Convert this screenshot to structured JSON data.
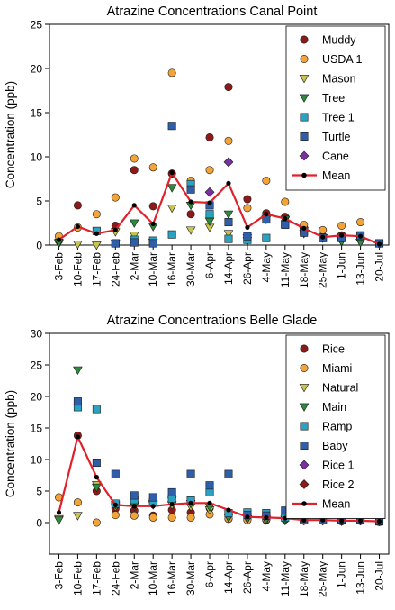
{
  "chart_data": [
    {
      "type": "scatter",
      "title": "Atrazine Concentrations Canal Point",
      "xlabel": "",
      "ylabel": "Concentration (ppb)",
      "ylim": [
        0,
        25
      ],
      "yticks": [
        0,
        5,
        10,
        15,
        20,
        25
      ],
      "grid": false,
      "legend_position": "top-right",
      "categories": [
        "3-Feb",
        "10-Feb",
        "17-Feb",
        "24-Feb",
        "2-Mar",
        "10-Mar",
        "16-Mar",
        "30-Mar",
        "6-Apr",
        "14-Apr",
        "26-Apr",
        "4-May",
        "11-May",
        "18-May",
        "25-May",
        "1-Jun",
        "13-Jun",
        "20-Jul"
      ],
      "series": [
        {
          "name": "Muddy",
          "marker": "circle",
          "color": "#8b1a1a",
          "values": [
            0.5,
            4.5,
            null,
            2.2,
            8.5,
            4.4,
            8.1,
            3.5,
            12.2,
            17.9,
            5.2,
            3.6,
            3.2,
            2.1,
            1.0,
            1.1,
            0.9,
            null
          ]
        },
        {
          "name": "USDA 1",
          "marker": "circle",
          "color": "#f2a33a",
          "values": [
            1.0,
            2.0,
            3.5,
            5.4,
            9.8,
            8.8,
            19.5,
            7.3,
            8.5,
            11.8,
            4.2,
            7.3,
            4.9,
            2.3,
            1.7,
            2.2,
            2.6,
            null
          ]
        },
        {
          "name": "Mason",
          "marker": "triangle-down",
          "color": "#c8c452",
          "values": [
            0.2,
            0.1,
            0.0,
            1.5,
            1.1,
            0.3,
            4.2,
            1.7,
            2.0,
            1.3,
            0.5,
            3.0,
            2.8,
            1.6,
            0.8,
            0.4,
            0.3,
            null
          ]
        },
        {
          "name": "Tree",
          "marker": "triangle-down",
          "color": "#2e8a3c",
          "values": [
            0.3,
            null,
            null,
            0.2,
            2.5,
            2.1,
            6.5,
            4.5,
            2.7,
            3.5,
            0.8,
            2.9,
            2.9,
            1.3,
            0.8,
            0.4,
            0.3,
            0.1
          ]
        },
        {
          "name": "Tree 1",
          "marker": "square",
          "color": "#2aa2c2",
          "values": [
            null,
            null,
            1.6,
            0.2,
            0.6,
            0.5,
            1.2,
            6.9,
            3.5,
            0.7,
            0.6,
            0.8,
            2.4,
            1.6,
            0.8,
            0.9,
            1.0,
            0.2
          ]
        },
        {
          "name": "Turtle",
          "marker": "square",
          "color": "#2f5fa8",
          "values": [
            null,
            null,
            null,
            0.2,
            0.3,
            0.2,
            13.5,
            6.3,
            4.5,
            2.6,
            1.0,
            2.9,
            2.3,
            1.4,
            0.8,
            0.8,
            1.1,
            0.2
          ]
        },
        {
          "name": "Cane",
          "marker": "diamond",
          "color": "#7b2fa2",
          "values": [
            null,
            null,
            null,
            null,
            null,
            null,
            null,
            null,
            6.0,
            9.4,
            null,
            null,
            null,
            null,
            null,
            null,
            null,
            null
          ]
        },
        {
          "name": "Mean",
          "marker": "line-dot",
          "color": "#e0202a",
          "values": [
            0.6,
            2.1,
            1.3,
            1.7,
            4.5,
            2.4,
            8.2,
            4.9,
            4.8,
            7.0,
            2.0,
            3.5,
            3.0,
            1.9,
            0.9,
            1.1,
            1.0,
            0.1
          ]
        }
      ]
    },
    {
      "type": "scatter",
      "title": "Atrazine Concentrations Belle Glade",
      "xlabel": "",
      "ylabel": "Concentration (ppb)",
      "ylim": [
        -5,
        30
      ],
      "yticks": [
        0,
        5,
        10,
        15,
        20,
        25,
        30
      ],
      "grid": false,
      "legend_position": "top-right",
      "categories": [
        "3-Feb",
        "10-Feb",
        "17-Feb",
        "24-Feb",
        "2-Mar",
        "10-Mar",
        "16-Mar",
        "30-Mar",
        "6-Apr",
        "14-Apr",
        "26-Apr",
        "4-May",
        "11-May",
        "18-May",
        "25-May",
        "1-Jun",
        "13-Jun",
        "20-Jul"
      ],
      "series": [
        {
          "name": "Rice",
          "marker": "circle",
          "color": "#8b1a1a",
          "values": [
            null,
            13.8,
            5.0,
            2.2,
            1.9,
            1.1,
            2.0,
            1.6,
            2.3,
            0.6,
            0.5,
            0.4,
            0.5,
            0.3,
            0.3,
            0.3,
            0.3,
            0.3
          ]
        },
        {
          "name": "Miami",
          "marker": "circle",
          "color": "#f2a33a",
          "values": [
            4.0,
            3.2,
            0.0,
            1.2,
            1.1,
            0.8,
            0.8,
            0.8,
            1.3,
            0.6,
            0.4,
            0.5,
            0.6,
            0.4,
            2.1,
            0.2,
            0.3,
            0.1
          ]
        },
        {
          "name": "Natural",
          "marker": "triangle-down",
          "color": "#c8c452",
          "values": [
            0.6,
            1.1,
            6.0,
            2.5,
            2.6,
            2.8,
            2.8,
            2.5,
            2.0,
            0.8,
            0.6,
            0.4,
            0.3,
            0.3,
            0.3,
            0.2,
            0.3,
            0.2
          ]
        },
        {
          "name": "Main",
          "marker": "triangle-down",
          "color": "#2e8a3c",
          "values": [
            0.4,
            24.2,
            5.6,
            2.8,
            2.8,
            3.0,
            3.5,
            3.0,
            2.5,
            0.8,
            0.6,
            0.5,
            0.5,
            0.3,
            0.3,
            0.3,
            0.3,
            0.2
          ]
        },
        {
          "name": "Ramp",
          "marker": "square",
          "color": "#2aa2c2",
          "values": [
            null,
            18.3,
            18.0,
            3.0,
            3.6,
            3.3,
            3.8,
            3.5,
            4.8,
            1.5,
            1.6,
            1.5,
            0.8,
            0.4,
            0.4,
            0.6,
            0.8,
            0.2
          ]
        },
        {
          "name": "Baby",
          "marker": "square",
          "color": "#2f5fa8",
          "values": [
            null,
            19.2,
            9.5,
            7.7,
            4.3,
            4.0,
            4.8,
            7.7,
            5.9,
            7.7,
            1.2,
            1.1,
            1.9,
            0.6,
            0.4,
            0.5,
            0.5,
            0.3
          ]
        },
        {
          "name": "Rice 1",
          "marker": "diamond",
          "color": "#7b2fa2",
          "values": [
            null,
            null,
            null,
            null,
            null,
            null,
            null,
            null,
            null,
            null,
            null,
            null,
            null,
            null,
            null,
            null,
            null,
            null
          ]
        },
        {
          "name": "Rice 2",
          "marker": "diamond",
          "color": "#8b1a1a",
          "values": [
            null,
            null,
            null,
            null,
            null,
            null,
            null,
            null,
            null,
            null,
            null,
            null,
            null,
            null,
            null,
            null,
            null,
            null
          ]
        },
        {
          "name": "Mean",
          "marker": "line-dot",
          "color": "#e0202a",
          "values": [
            1.6,
            13.6,
            7.2,
            2.8,
            2.6,
            2.6,
            2.9,
            3.1,
            3.1,
            2.0,
            0.9,
            0.8,
            0.7,
            0.4,
            0.4,
            0.3,
            0.3,
            0.2
          ]
        }
      ]
    }
  ]
}
